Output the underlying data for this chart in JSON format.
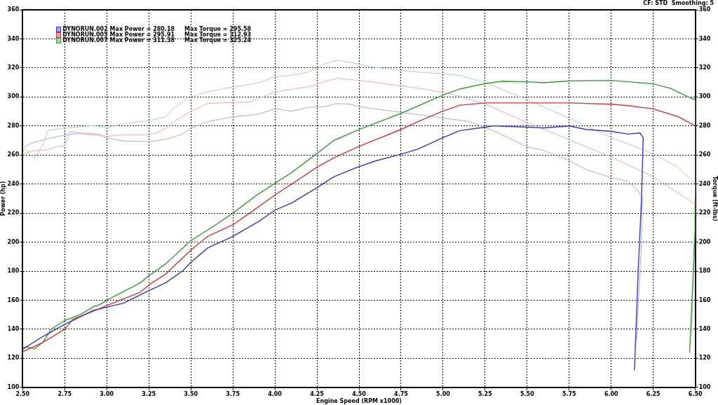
{
  "chart_data": {
    "type": "line",
    "xlabel": "Engine Speed (RPM x1000)",
    "ylabel": "Power (hp)",
    "y2label": "Torque (ft-lbs)",
    "annotations": [
      "CF: STD  Smoothing: 5"
    ],
    "xlim": [
      2.5,
      6.5
    ],
    "xticks": [
      {
        "value": 2.5,
        "label": "2.50"
      },
      2.75,
      {
        "value": 3,
        "label": "3.00"
      },
      3.25,
      {
        "value": 3.5,
        "label": "3.50"
      },
      3.75,
      {
        "value": 4,
        "label": "4.00"
      },
      4.25,
      {
        "value": 4.5,
        "label": "4.50"
      },
      4.75,
      {
        "value": 5,
        "label": "5.00"
      },
      5.25,
      {
        "value": 5.5,
        "label": "5.50"
      },
      5.75,
      {
        "value": 6,
        "label": "6.00"
      },
      6.25,
      {
        "value": 6.5,
        "label": "6.50"
      }
    ],
    "ylim": [
      100,
      360
    ],
    "yticks": [
      100,
      120,
      140,
      160,
      180,
      200,
      220,
      240,
      260,
      280,
      300,
      320,
      340,
      360
    ],
    "y2lim": [
      100,
      360
    ],
    "y2ticks": [
      100,
      120,
      140,
      160,
      180,
      200,
      220,
      240,
      260,
      280,
      300,
      320,
      340,
      360
    ],
    "grid": true,
    "legend": "top left",
    "series": [
      {
        "name": "DYNORUN.002 Max Power = 280.18     Max Torque = 295.58",
        "color": "#3535c8",
        "x": [
          2.5,
          2.62,
          2.75,
          2.85,
          2.92,
          3.0,
          3.1,
          3.25,
          3.35,
          3.45,
          3.5,
          3.6,
          3.75,
          3.9,
          4.0,
          4.1,
          4.25,
          4.35,
          4.5,
          4.6,
          4.75,
          4.85,
          5.0,
          5.1,
          5.25,
          5.3,
          5.5,
          5.6,
          5.75,
          5.85,
          6.0,
          6.1,
          6.17,
          6.19,
          6.18,
          6.16,
          6.138
        ],
        "values": [
          126.3,
          135,
          143.4,
          149,
          153,
          155.2,
          158,
          166.6,
          172,
          180,
          186,
          196,
          204,
          214,
          222,
          227,
          237.5,
          245,
          252,
          256,
          260.5,
          264,
          272,
          276.8,
          279.2,
          280.1,
          279.2,
          278.7,
          280,
          277.6,
          276.3,
          274.4,
          275.2,
          272,
          230,
          180,
          112
        ]
      },
      {
        "name": "DYNORUN.005 Max Power = 295.91     Max Torque = 312.93",
        "color": "#cc3838",
        "x": [
          2.5,
          2.62,
          2.7,
          2.75,
          2.8,
          2.9,
          3.0,
          3.1,
          3.2,
          3.25,
          3.35,
          3.5,
          3.6,
          3.75,
          3.85,
          4.0,
          4.1,
          4.25,
          4.35,
          4.5,
          4.75,
          4.85,
          5.0,
          5.1,
          5.25,
          5.5,
          5.75,
          6.0,
          6.1,
          6.25,
          6.4,
          6.5
        ],
        "values": [
          124.4,
          131,
          136.5,
          140,
          147,
          151.5,
          156.3,
          161,
          165.5,
          170.5,
          178,
          194.5,
          204,
          212,
          220,
          232.5,
          240,
          251.6,
          258,
          266,
          277.6,
          283,
          290.3,
          294.3,
          295.9,
          295.9,
          295.9,
          295,
          294,
          291.8,
          286.3,
          280
        ]
      },
      {
        "name": "DYNORUN.007 Max Power = 311.38     Max Torque = 325.24",
        "color": "#3a9a3a",
        "x": [
          2.5,
          2.52,
          2.57,
          2.62,
          2.67,
          2.75,
          2.85,
          2.92,
          2.96,
          3.0,
          3.1,
          3.2,
          3.25,
          3.35,
          3.5,
          3.65,
          3.75,
          3.9,
          4.0,
          4.1,
          4.25,
          4.35,
          4.5,
          4.75,
          5.0,
          5.1,
          5.25,
          5.35,
          5.5,
          5.6,
          5.75,
          6.0,
          6.1,
          6.25,
          6.35,
          6.45,
          6.5,
          6.5,
          6.466
        ],
        "values": [
          127,
          128,
          126.5,
          131,
          140,
          146,
          150.5,
          155.5,
          157,
          160,
          166,
          172,
          176.8,
          185,
          201,
          212,
          220,
          233,
          240.5,
          248,
          261,
          270,
          277.5,
          288.7,
          301.3,
          305.5,
          309.2,
          310.8,
          310.4,
          309.8,
          311,
          311.3,
          310.5,
          309,
          306,
          300.5,
          298,
          210,
          124
        ]
      },
      {
        "color": "#a9a9ee",
        "axis": "y2",
        "x": [
          2.5,
          2.55,
          2.65,
          2.75,
          2.82,
          2.95,
          3.0,
          3.1,
          3.25,
          3.35,
          3.45,
          3.5,
          3.6,
          3.75,
          3.9,
          4.0,
          4.1,
          4.2,
          4.3,
          4.37,
          4.45,
          4.5,
          4.6,
          4.75,
          4.85,
          5.0,
          5.15,
          5.25,
          5.35,
          5.5,
          5.6,
          5.75,
          5.85,
          6.0,
          6.1,
          6.15,
          6.17,
          6.185,
          6.18,
          6.15
        ],
        "values": [
          265,
          268,
          271.3,
          273.7,
          274.8,
          273.7,
          271.7,
          269.7,
          269.2,
          270.8,
          274.4,
          278.4,
          283,
          286.3,
          288,
          291.8,
          290.2,
          292.9,
          293.4,
          295.5,
          295,
          293.4,
          291.7,
          289.4,
          287.8,
          285.4,
          283.2,
          279,
          274,
          265.7,
          263,
          256.2,
          250,
          244.4,
          242,
          236.5,
          233,
          231,
          200,
          132
        ]
      },
      {
        "color": "#eeaaaa",
        "axis": "y2",
        "x": [
          2.5,
          2.55,
          2.65,
          2.7,
          2.75,
          2.78,
          2.85,
          2.95,
          3.0,
          3.1,
          3.25,
          3.3,
          3.36,
          3.4,
          3.5,
          3.6,
          3.75,
          3.85,
          4.0,
          4.1,
          4.2,
          4.3,
          4.37,
          4.5,
          4.75,
          4.9,
          5.0,
          5.1,
          5.25,
          5.5,
          5.75,
          6.0,
          6.25,
          6.5
        ],
        "values": [
          260,
          262.8,
          263.6,
          265.7,
          266.5,
          276,
          275.2,
          274.4,
          272.8,
          274,
          274,
          275.5,
          279,
          283,
          290,
          295.5,
          296.2,
          296.5,
          303.6,
          305.2,
          307,
          310.7,
          312.9,
          311.4,
          307.6,
          305.2,
          303,
          300.5,
          295,
          282.4,
          270.5,
          258.6,
          245,
          226
        ]
      },
      {
        "color": "#a9d6a9",
        "axis": "y2",
        "x": [
          2.5,
          2.55,
          2.57,
          2.62,
          2.65,
          2.75,
          2.85,
          2.92,
          3.0,
          3.1,
          3.25,
          3.35,
          3.4,
          3.5,
          3.6,
          3.75,
          3.9,
          4.0,
          4.1,
          4.2,
          4.3,
          4.37,
          4.45,
          4.5,
          4.6,
          4.75,
          4.85,
          5.0,
          5.1,
          5.25,
          5.5,
          5.75,
          6.0,
          6.25,
          6.4,
          6.5,
          6.478
        ],
        "values": [
          265.7,
          259.4,
          257,
          267.3,
          276.8,
          278.6,
          279.5,
          280.3,
          278.7,
          281.6,
          283.5,
          286.3,
          292.6,
          300,
          303.6,
          306.8,
          309.6,
          313.9,
          315,
          317,
          323,
          325.2,
          323.8,
          322.5,
          320.3,
          318.3,
          317.1,
          316,
          314.8,
          310,
          298.1,
          285.4,
          272,
          260.8,
          251.3,
          240,
          137
        ]
      }
    ]
  }
}
